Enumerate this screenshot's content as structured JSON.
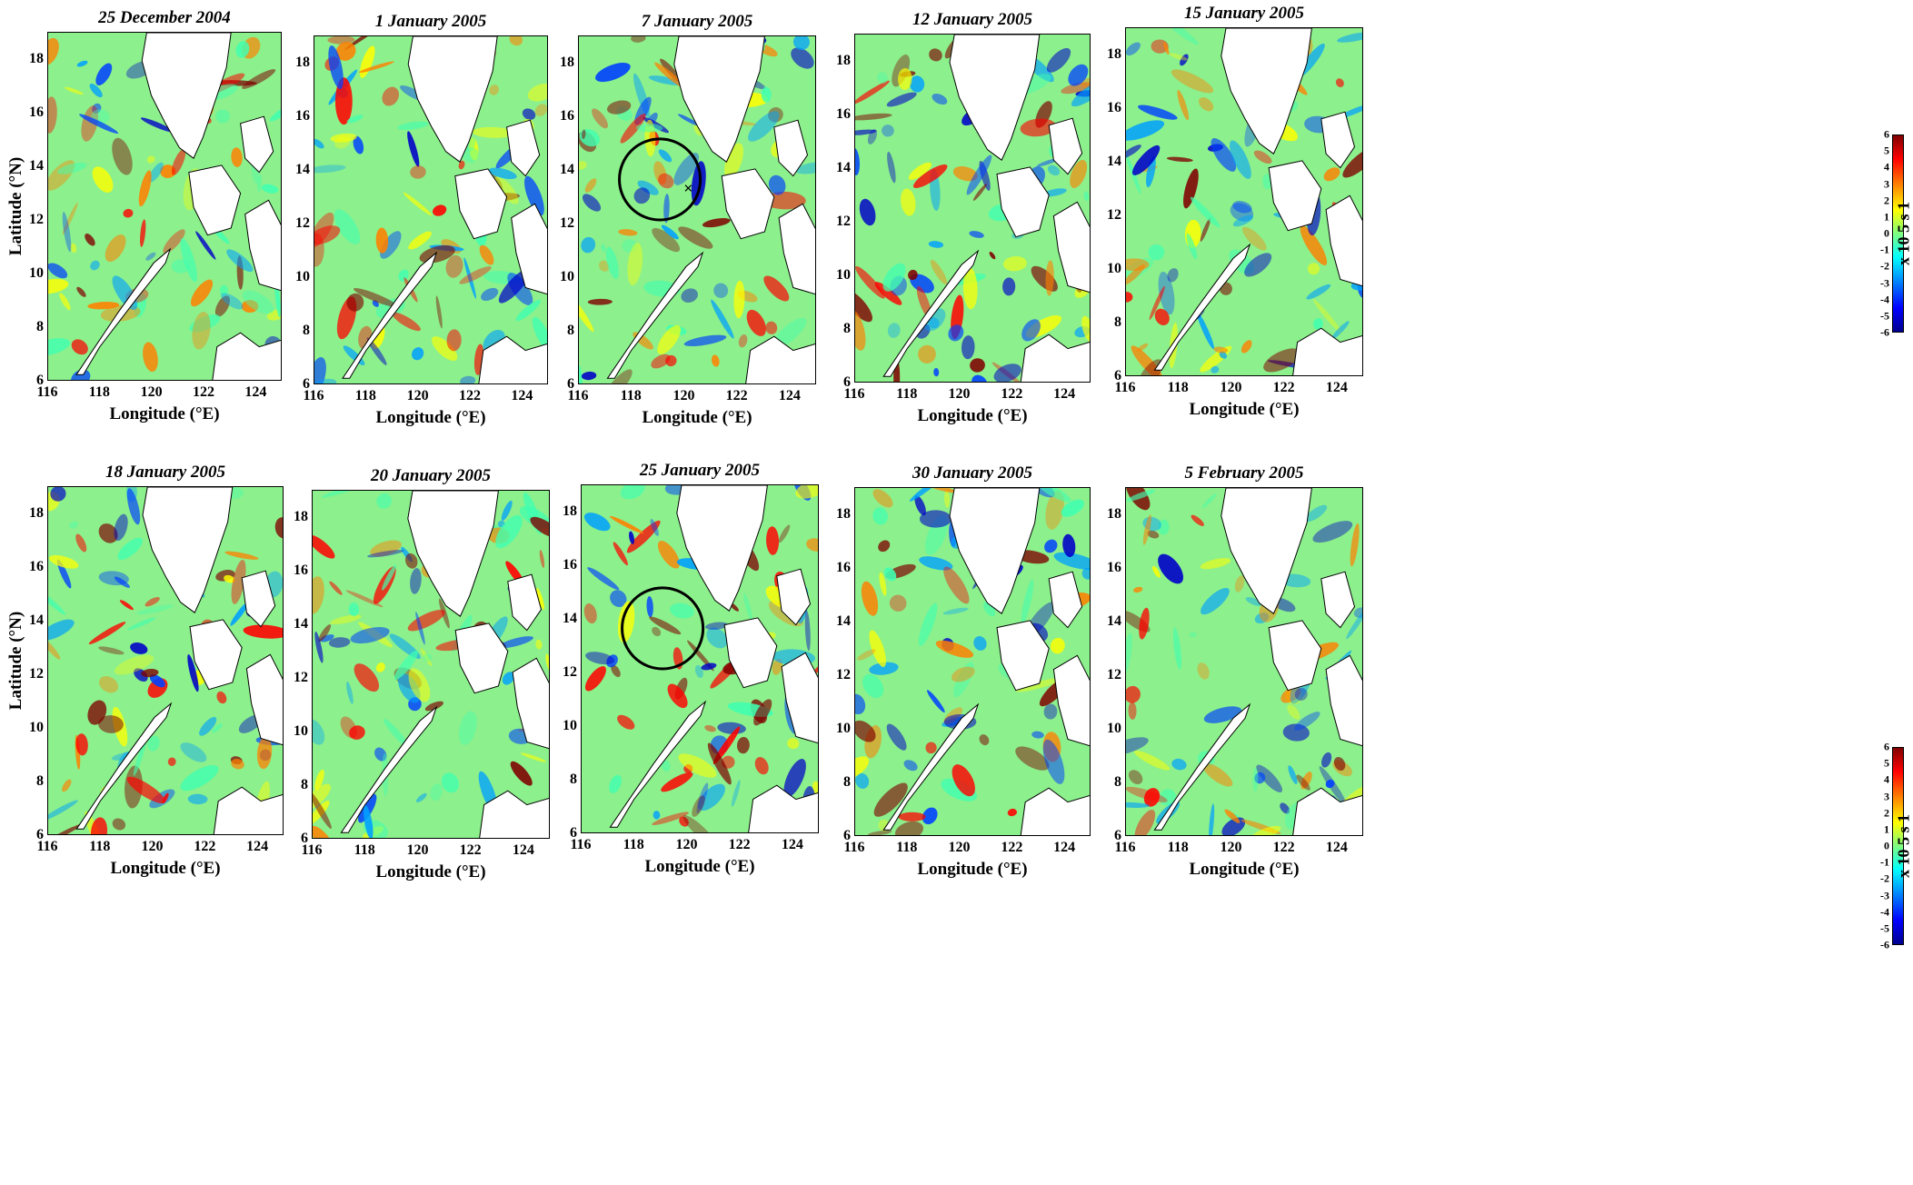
{
  "chart_data": {
    "type": "heatmap",
    "panels": [
      {
        "title": "25 December 2004"
      },
      {
        "title": "1 January 2005"
      },
      {
        "title": "7 January 2005",
        "circle": true,
        "marker": "×"
      },
      {
        "title": "12 January 2005"
      },
      {
        "title": "15 January 2005"
      },
      {
        "title": "18 January 2005"
      },
      {
        "title": "20 January 2005"
      },
      {
        "title": "25 January 2005",
        "circle": true
      },
      {
        "title": "30 January 2005"
      },
      {
        "title": "5 February 2005"
      }
    ],
    "xlabel": "Longitude (°E)",
    "ylabel": "Latitude (°N)",
    "xlim": [
      116,
      125
    ],
    "ylim": [
      6,
      19
    ],
    "xticks": [
      "116",
      "118",
      "120",
      "122",
      "124"
    ],
    "yticks": [
      "6",
      "8",
      "10",
      "12",
      "14",
      "16",
      "18"
    ],
    "colorbar": {
      "ticks": [
        "6",
        "5",
        "4",
        "3",
        "2",
        "1",
        "0",
        "-1",
        "-2",
        "-3",
        "-4",
        "-5",
        "-6"
      ],
      "range": [
        -6,
        6
      ],
      "unit": "x 10 5 s 1",
      "colormap": "jet",
      "colors": [
        "#7f0000",
        "#ff0000",
        "#ff8000",
        "#ffff00",
        "#80ff80",
        "#00ffff",
        "#0080ff",
        "#0000ff",
        "#00008f"
      ]
    }
  }
}
